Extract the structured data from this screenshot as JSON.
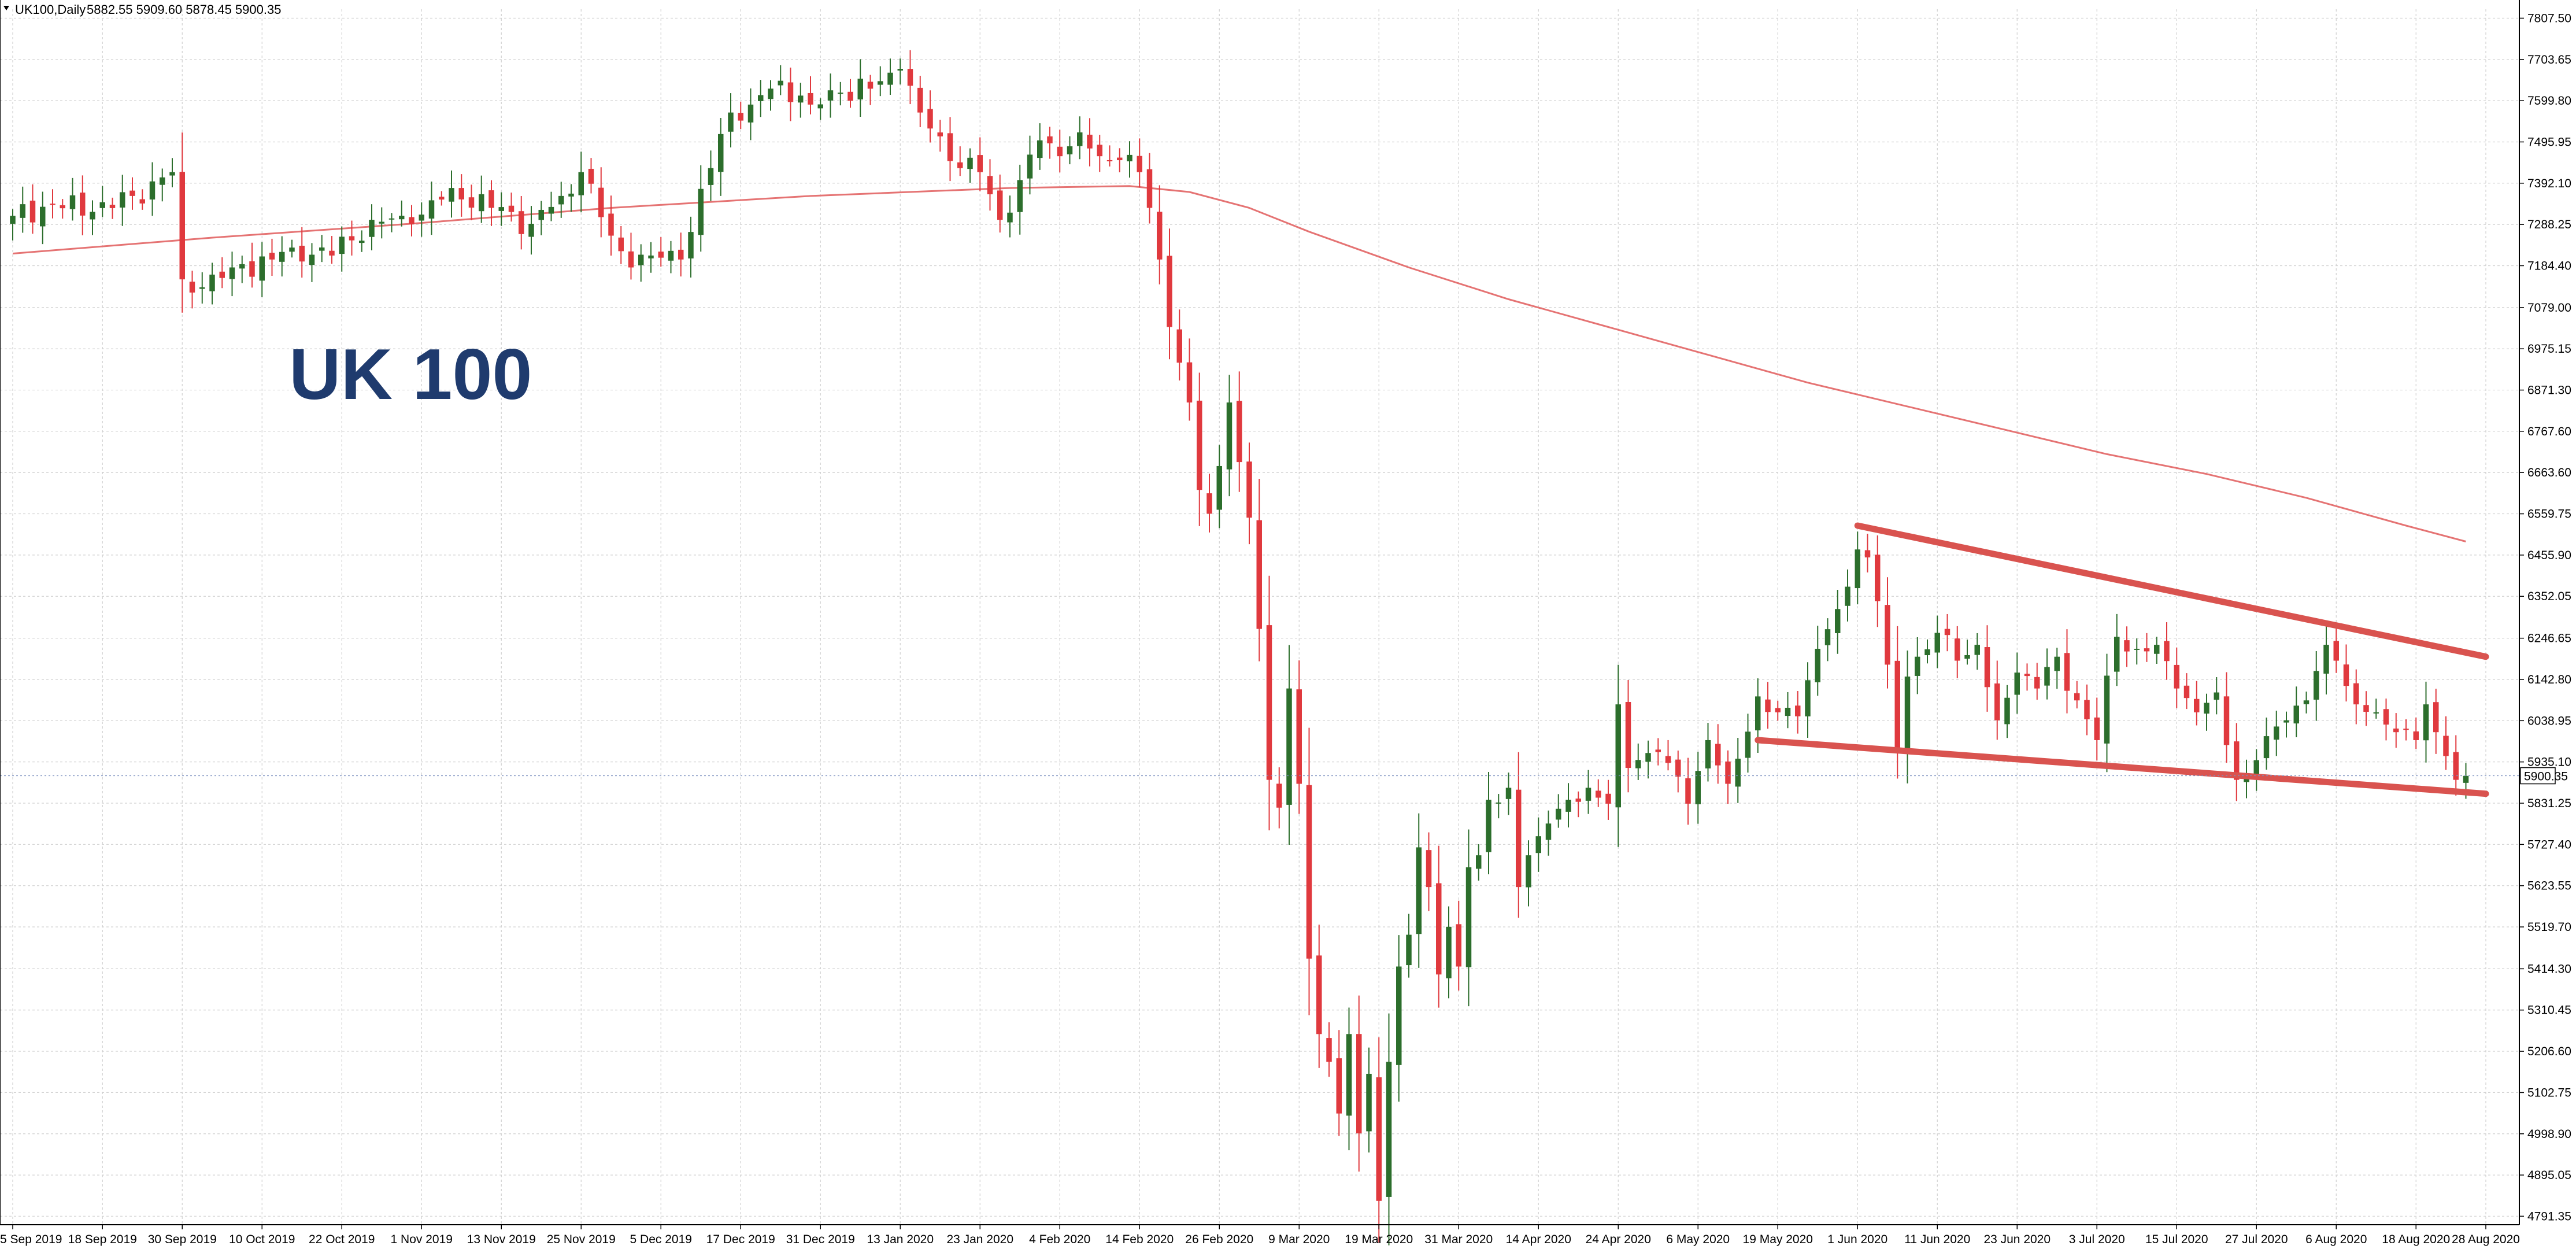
{
  "header": {
    "symbol_info": "UK100,Daily",
    "ohlc": "5882.55 5909.60 5878.45 5900.35"
  },
  "overlay_label": "UK 100",
  "colors": {
    "bull": "#2c6e2c",
    "bear": "#e0393e",
    "ma": "#e57373",
    "trendline": "#d9534f",
    "grid": "#d0d0d0",
    "label": "#1f3b6e",
    "current_price_line": "#7c8fbf"
  },
  "chart_data": {
    "type": "candlestick",
    "y_ticks": [
      "7807.50",
      "7703.65",
      "7599.80",
      "7495.95",
      "7392.10",
      "7288.25",
      "7184.40",
      "7079.00",
      "6975.15",
      "6871.30",
      "6767.60",
      "6663.60",
      "6559.75",
      "6455.90",
      "6352.05",
      "6246.65",
      "6142.80",
      "6038.95",
      "5935.10",
      "5831.25",
      "5727.40",
      "5623.55",
      "5519.70",
      "5414.30",
      "5310.45",
      "5206.60",
      "5102.75",
      "4998.90",
      "4895.05",
      "4791.35"
    ],
    "ylim": [
      4770,
      7830
    ],
    "x_ticks": [
      {
        "label": "5 Sep 2019",
        "day": 0
      },
      {
        "label": "18 Sep 2019",
        "day": 9
      },
      {
        "label": "30 Sep 2019",
        "day": 17
      },
      {
        "label": "10 Oct 2019",
        "day": 25
      },
      {
        "label": "22 Oct 2019",
        "day": 33
      },
      {
        "label": "1 Nov 2019",
        "day": 41
      },
      {
        "label": "13 Nov 2019",
        "day": 49
      },
      {
        "label": "25 Nov 2019",
        "day": 57
      },
      {
        "label": "5 Dec 2019",
        "day": 65
      },
      {
        "label": "17 Dec 2019",
        "day": 73
      },
      {
        "label": "31 Dec 2019",
        "day": 81
      },
      {
        "label": "13 Jan 2020",
        "day": 89
      },
      {
        "label": "23 Jan 2020",
        "day": 97
      },
      {
        "label": "4 Feb 2020",
        "day": 105
      },
      {
        "label": "14 Feb 2020",
        "day": 113
      },
      {
        "label": "26 Feb 2020",
        "day": 121
      },
      {
        "label": "9 Mar 2020",
        "day": 129
      },
      {
        "label": "19 Mar 2020",
        "day": 137
      },
      {
        "label": "31 Mar 2020",
        "day": 145
      },
      {
        "label": "14 Apr 2020",
        "day": 153
      },
      {
        "label": "24 Apr 2020",
        "day": 161
      },
      {
        "label": "6 May 2020",
        "day": 169
      },
      {
        "label": "19 May 2020",
        "day": 177
      },
      {
        "label": "1 Jun 2020",
        "day": 185
      },
      {
        "label": "11 Jun 2020",
        "day": 193
      },
      {
        "label": "23 Jun 2020",
        "day": 201
      },
      {
        "label": "3 Jul 2020",
        "day": 209
      },
      {
        "label": "15 Jul 2020",
        "day": 217
      },
      {
        "label": "27 Jul 2020",
        "day": 225
      },
      {
        "label": "6 Aug 2020",
        "day": 233
      },
      {
        "label": "18 Aug 2020",
        "day": 241
      },
      {
        "label": "28 Aug 2020",
        "day": 248
      }
    ],
    "anchors": [
      [
        0,
        7310
      ],
      [
        4,
        7340
      ],
      [
        8,
        7320
      ],
      [
        12,
        7360
      ],
      [
        16,
        7420
      ],
      [
        17,
        7150
      ],
      [
        19,
        7130
      ],
      [
        22,
        7180
      ],
      [
        26,
        7200
      ],
      [
        28,
        7230
      ],
      [
        32,
        7210
      ],
      [
        36,
        7300
      ],
      [
        40,
        7290
      ],
      [
        44,
        7380
      ],
      [
        48,
        7330
      ],
      [
        52,
        7290
      ],
      [
        55,
        7360
      ],
      [
        57,
        7420
      ],
      [
        60,
        7260
      ],
      [
        62,
        7180
      ],
      [
        64,
        7210
      ],
      [
        67,
        7200
      ],
      [
        70,
        7430
      ],
      [
        72,
        7570
      ],
      [
        74,
        7590
      ],
      [
        77,
        7650
      ],
      [
        80,
        7590
      ],
      [
        83,
        7620
      ],
      [
        86,
        7630
      ],
      [
        89,
        7680
      ],
      [
        91,
        7570
      ],
      [
        93,
        7510
      ],
      [
        95,
        7430
      ],
      [
        97,
        7420
      ],
      [
        99,
        7300
      ],
      [
        101,
        7400
      ],
      [
        103,
        7500
      ],
      [
        105,
        7460
      ],
      [
        107,
        7520
      ],
      [
        109,
        7460
      ],
      [
        111,
        7450
      ],
      [
        113,
        7420
      ],
      [
        114,
        7330
      ],
      [
        115,
        7200
      ],
      [
        116,
        7030
      ],
      [
        118,
        6840
      ],
      [
        119,
        6620
      ],
      [
        120,
        6560
      ],
      [
        121,
        6680
      ],
      [
        122,
        6840
      ],
      [
        123,
        6690
      ],
      [
        124,
        6550
      ],
      [
        125,
        6270
      ],
      [
        126,
        5890
      ],
      [
        127,
        5820
      ],
      [
        128,
        6120
      ],
      [
        129,
        5880
      ],
      [
        130,
        5440
      ],
      [
        131,
        5250
      ],
      [
        132,
        5180
      ],
      [
        133,
        5050
      ],
      [
        134,
        5250
      ],
      [
        135,
        5000
      ],
      [
        136,
        5150
      ],
      [
        137,
        4830
      ],
      [
        138,
        5180
      ],
      [
        139,
        5420
      ],
      [
        140,
        5500
      ],
      [
        141,
        5720
      ],
      [
        142,
        5620
      ],
      [
        143,
        5400
      ],
      [
        144,
        5520
      ],
      [
        145,
        5420
      ],
      [
        146,
        5670
      ],
      [
        147,
        5700
      ],
      [
        148,
        5840
      ],
      [
        150,
        5870
      ],
      [
        151,
        5620
      ],
      [
        152,
        5700
      ],
      [
        154,
        5780
      ],
      [
        156,
        5840
      ],
      [
        158,
        5870
      ],
      [
        160,
        5830
      ],
      [
        161,
        6080
      ],
      [
        162,
        5920
      ],
      [
        163,
        5940
      ],
      [
        165,
        5960
      ],
      [
        168,
        5830
      ],
      [
        170,
        5990
      ],
      [
        172,
        5880
      ],
      [
        175,
        6100
      ],
      [
        177,
        6060
      ],
      [
        179,
        6050
      ],
      [
        181,
        6220
      ],
      [
        183,
        6320
      ],
      [
        185,
        6470
      ],
      [
        186,
        6450
      ],
      [
        187,
        6340
      ],
      [
        188,
        6180
      ],
      [
        189,
        5970
      ],
      [
        190,
        6150
      ],
      [
        191,
        6200
      ],
      [
        193,
        6260
      ],
      [
        195,
        6190
      ],
      [
        197,
        6230
      ],
      [
        199,
        6040
      ],
      [
        201,
        6160
      ],
      [
        203,
        6120
      ],
      [
        205,
        6200
      ],
      [
        207,
        6090
      ],
      [
        209,
        5990
      ],
      [
        211,
        6250
      ],
      [
        213,
        6220
      ],
      [
        215,
        6230
      ],
      [
        217,
        6120
      ],
      [
        219,
        6060
      ],
      [
        221,
        6110
      ],
      [
        223,
        5890
      ],
      [
        224,
        5900
      ],
      [
        226,
        6000
      ],
      [
        228,
        6040
      ],
      [
        230,
        6090
      ],
      [
        232,
        6230
      ],
      [
        233,
        6190
      ],
      [
        235,
        6080
      ],
      [
        237,
        6060
      ],
      [
        239,
        6010
      ],
      [
        241,
        5990
      ],
      [
        242,
        6080
      ],
      [
        243,
        6010
      ],
      [
        244,
        5950
      ],
      [
        245,
        5890
      ],
      [
        246,
        5900
      ]
    ],
    "ma_200": [
      [
        0,
        7215
      ],
      [
        20,
        7255
      ],
      [
        40,
        7290
      ],
      [
        60,
        7330
      ],
      [
        80,
        7360
      ],
      [
        100,
        7380
      ],
      [
        112,
        7385
      ],
      [
        118,
        7370
      ],
      [
        124,
        7330
      ],
      [
        130,
        7270
      ],
      [
        140,
        7180
      ],
      [
        150,
        7100
      ],
      [
        160,
        7030
      ],
      [
        170,
        6960
      ],
      [
        180,
        6890
      ],
      [
        185,
        6860
      ],
      [
        190,
        6830
      ],
      [
        200,
        6770
      ],
      [
        210,
        6710
      ],
      [
        220,
        6660
      ],
      [
        230,
        6600
      ],
      [
        240,
        6530
      ],
      [
        246,
        6490
      ]
    ],
    "trendline_upper": [
      [
        185,
        6530
      ],
      [
        248,
        6200
      ]
    ],
    "trendline_lower": [
      [
        175,
        5990
      ],
      [
        248,
        5855
      ]
    ],
    "current_price": 5900.35,
    "days_total": 248
  }
}
